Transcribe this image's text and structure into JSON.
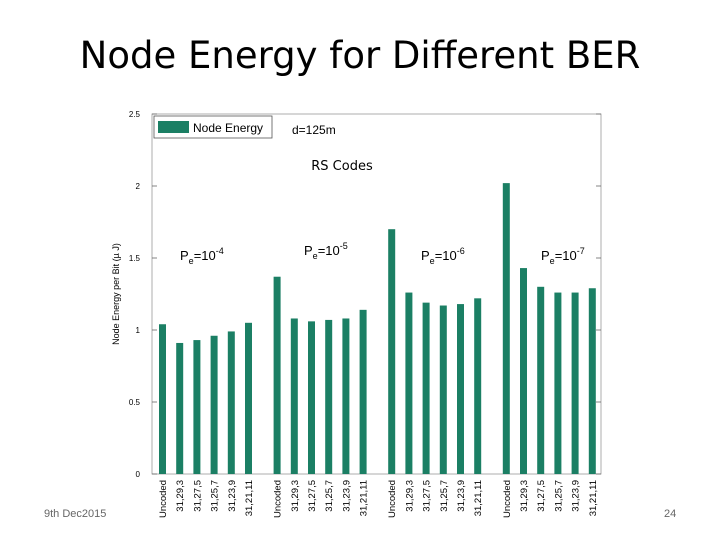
{
  "slide": {
    "title": "Node Energy for Different BER",
    "footer_date": "9th Dec2015",
    "page_number": "24"
  },
  "chart_data": {
    "type": "bar",
    "ylabel": "Node Energy per Bit (µ J)",
    "xlabel": "",
    "ylim": [
      0,
      2.5
    ],
    "yticks": [
      0,
      0.5,
      1,
      1.5,
      2,
      2.5
    ],
    "grid": false,
    "legend": {
      "entry": "Node Energy",
      "position": "top-left"
    },
    "bar_color": "#1b7f64",
    "annotations": {
      "distance": "d=125m",
      "code_type": "RS Codes"
    },
    "groups": [
      {
        "ber_prefix": "P",
        "ber_sub": "e",
        "ber_base": "=10",
        "ber_exp": "-4",
        "categories": [
          "Uncoded",
          "31,29,3",
          "31,27,5",
          "31,25,7",
          "31,23,9",
          "31,21,11"
        ],
        "values": [
          1.04,
          0.91,
          0.93,
          0.96,
          0.99,
          1.05
        ]
      },
      {
        "ber_prefix": "P",
        "ber_sub": "e",
        "ber_base": "=10",
        "ber_exp": "-5",
        "categories": [
          "Uncoded",
          "31,29,3",
          "31,27,5",
          "31,25,7",
          "31,23,9",
          "31,21,11"
        ],
        "values": [
          1.37,
          1.08,
          1.06,
          1.07,
          1.08,
          1.14
        ]
      },
      {
        "ber_prefix": "P",
        "ber_sub": "e",
        "ber_base": "=10",
        "ber_exp": "-6",
        "categories": [
          "Uncoded",
          "31,29,3",
          "31,27,5",
          "31,25,7",
          "31,23,9",
          "31,21,11"
        ],
        "values": [
          1.7,
          1.26,
          1.19,
          1.17,
          1.18,
          1.22
        ]
      },
      {
        "ber_prefix": "P",
        "ber_sub": "e",
        "ber_base": "=10",
        "ber_exp": "-7",
        "categories": [
          "Uncoded",
          "31,29,3",
          "31,27,5",
          "31,25,7",
          "31,23,9",
          "31,21,11"
        ],
        "values": [
          2.02,
          1.43,
          1.3,
          1.26,
          1.26,
          1.29
        ]
      }
    ]
  }
}
